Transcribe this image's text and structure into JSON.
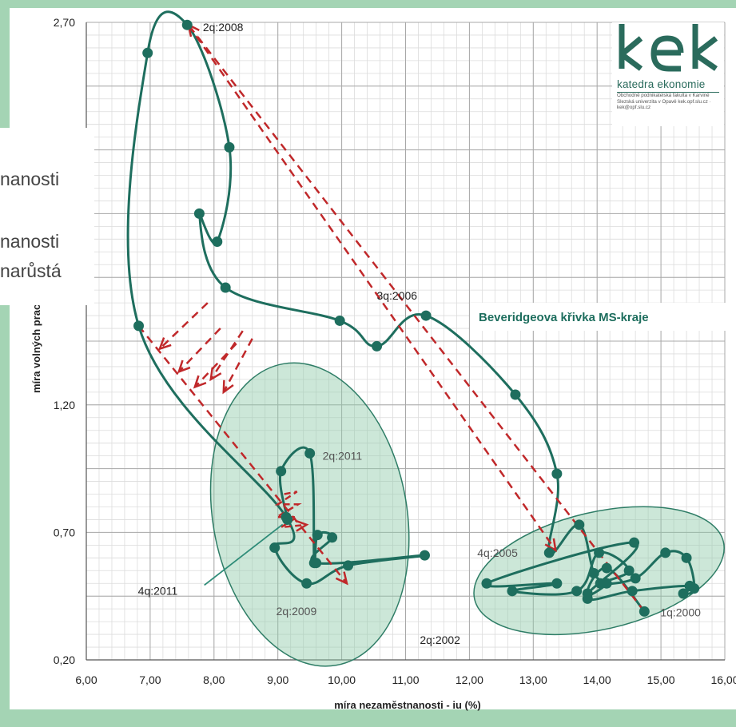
{
  "slide": {
    "fragments": [
      "nanosti",
      "nanosti",
      "narůstá"
    ]
  },
  "logo": {
    "letters": "kek",
    "name": "katedra ekonomie",
    "sub": "Obchodně podnikatelská fakulta v Karviné Slezská univerzita v Opavě kek.opf.slu.cz · kek@opf.slu.cz",
    "color": "#2a6b5c"
  },
  "chart_data": {
    "type": "line",
    "title": "Beveridgeova křivka MS-kraje",
    "xlabel": "míra nezaměstnanosti  - iu (%)",
    "ylabel": "míra volných pracov",
    "xlim": [
      6,
      16
    ],
    "ylim": [
      0.2,
      2.7
    ],
    "x_ticks": [
      "6,00",
      "7,00",
      "8,00",
      "9,00",
      "10,00",
      "11,00",
      "12,00",
      "13,00",
      "14,00",
      "15,00",
      "16,00"
    ],
    "y_ticks": [
      {
        "value": 0.2,
        "label": "0,20"
      },
      {
        "value": 0.7,
        "label": "0,70"
      },
      {
        "value": 1.2,
        "label": "1,20"
      },
      {
        "value": 2.7,
        "label": "2,70"
      }
    ],
    "grid": true,
    "line_color": "#1e6e5e",
    "arrow_color": "#c0282a",
    "ellipse_color": "#8fc9a9",
    "series": [
      {
        "points": [
          [
            14.74,
            0.39
          ],
          [
            14.15,
            0.56
          ],
          [
            13.85,
            0.44
          ],
          [
            14.55,
            0.47
          ],
          [
            15.45,
            0.49
          ],
          [
            15.35,
            0.46
          ],
          [
            15.52,
            0.48
          ],
          [
            15.4,
            0.6
          ],
          [
            15.07,
            0.62
          ],
          [
            14.6,
            0.52
          ],
          [
            14.05,
            0.5
          ],
          [
            14.5,
            0.55
          ],
          [
            14.03,
            0.62
          ],
          [
            13.68,
            0.47
          ],
          [
            12.67,
            0.47
          ],
          [
            13.37,
            0.5
          ],
          [
            12.27,
            0.5
          ],
          [
            14.58,
            0.66
          ],
          [
            13.85,
            0.46
          ],
          [
            14.15,
            0.5
          ],
          [
            13.95,
            0.54
          ],
          [
            13.72,
            0.73
          ],
          [
            13.25,
            0.62
          ],
          [
            13.37,
            0.93
          ],
          [
            12.72,
            1.24
          ],
          [
            11.32,
            1.55
          ],
          [
            10.55,
            1.43
          ],
          [
            9.97,
            1.53
          ],
          [
            8.18,
            1.66
          ],
          [
            7.77,
            1.95
          ],
          [
            8.05,
            1.84
          ],
          [
            8.24,
            2.21
          ],
          [
            7.58,
            2.69
          ],
          [
            6.96,
            2.58
          ],
          [
            6.82,
            1.51
          ],
          [
            9.13,
            0.76
          ],
          [
            8.95,
            0.64
          ],
          [
            9.45,
            0.5
          ],
          [
            10.1,
            0.57
          ],
          [
            11.3,
            0.61
          ],
          [
            9.6,
            0.58
          ],
          [
            9.85,
            0.68
          ],
          [
            9.62,
            0.69
          ],
          [
            9.57,
            0.58
          ],
          [
            9.5,
            1.01
          ],
          [
            9.05,
            0.94
          ],
          [
            9.15,
            0.75
          ]
        ]
      }
    ],
    "annotations": [
      {
        "text": "2q:2008",
        "x": 7.6,
        "y": 2.69
      },
      {
        "text": "3q:2006",
        "x": 11.3,
        "y": 1.55
      },
      {
        "text": "2q:2011",
        "x": 9.5,
        "y": 1.01
      },
      {
        "text": "4q:2005",
        "x": 13.2,
        "y": 0.62
      },
      {
        "text": "4q:2011",
        "x": 9.15,
        "y": 0.75
      },
      {
        "text": "2q:2009",
        "x": 9.45,
        "y": 0.5
      },
      {
        "text": "2q:2002",
        "x": 12.3,
        "y": 0.5
      },
      {
        "text": "1q:2000",
        "x": 14.74,
        "y": 0.39
      }
    ],
    "arrows": [
      {
        "from": [
          14.74,
          0.39
        ],
        "to": [
          7.6,
          2.69
        ]
      },
      {
        "from": [
          7.6,
          2.69
        ],
        "to": [
          13.35,
          0.63
        ]
      },
      {
        "from": [
          6.82,
          1.51
        ],
        "to": [
          10.08,
          0.5
        ]
      },
      {
        "from": [
          7.9,
          1.6
        ],
        "to": [
          7.15,
          1.42
        ]
      },
      {
        "from": [
          8.1,
          1.5
        ],
        "to": [
          7.45,
          1.33
        ]
      },
      {
        "from": [
          8.35,
          1.44
        ],
        "to": [
          7.7,
          1.27
        ]
      },
      {
        "from": [
          8.45,
          1.49
        ],
        "to": [
          7.95,
          1.3
        ]
      },
      {
        "from": [
          8.6,
          1.46
        ],
        "to": [
          8.15,
          1.25
        ]
      }
    ],
    "arrow_zigzag": [
      [
        9.1,
        0.85
      ],
      [
        9.3,
        0.86
      ],
      [
        9.0,
        0.81
      ],
      [
        9.32,
        0.81
      ],
      [
        8.98,
        0.76
      ],
      [
        9.3,
        0.76
      ],
      [
        9.05,
        0.72
      ],
      [
        9.45,
        0.73
      ]
    ],
    "ellipses": [
      {
        "cx": 9.5,
        "cy": 0.77,
        "rx": 1.52,
        "ry": 0.6,
        "rotate": -10
      },
      {
        "cx": 14.03,
        "cy": 0.55,
        "rx": 2.0,
        "ry": 0.23,
        "rotate": -13
      }
    ]
  }
}
